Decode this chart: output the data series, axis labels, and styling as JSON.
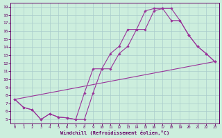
{
  "background_color": "#cceedd",
  "grid_color": "#aacccc",
  "line_color": "#993399",
  "marker_color": "#993399",
  "xlabel": "Windchill (Refroidissement éolien,°C)",
  "xlabel_color": "#660066",
  "tick_color": "#660066",
  "spine_color": "#660066",
  "xlim": [
    -0.5,
    23.5
  ],
  "ylim": [
    4.5,
    19.5
  ],
  "xticks": [
    0,
    1,
    2,
    3,
    4,
    5,
    6,
    7,
    8,
    9,
    10,
    11,
    12,
    13,
    14,
    15,
    16,
    17,
    18,
    19,
    20,
    21,
    22,
    23
  ],
  "yticks": [
    5,
    6,
    7,
    8,
    9,
    10,
    11,
    12,
    13,
    14,
    15,
    16,
    17,
    18,
    19
  ],
  "series1_x": [
    0,
    1,
    2,
    3,
    4,
    5,
    6,
    7,
    8,
    9,
    10,
    11,
    12,
    13,
    14,
    15,
    16,
    17,
    18,
    19,
    20,
    21,
    22,
    23
  ],
  "series1_y": [
    7.5,
    6.5,
    6.2,
    5.0,
    5.7,
    5.3,
    5.2,
    5.0,
    5.0,
    8.3,
    11.3,
    11.3,
    13.2,
    14.1,
    16.2,
    16.2,
    18.5,
    18.8,
    18.8,
    17.3,
    15.5,
    14.1,
    13.2,
    12.2
  ],
  "series2_x": [
    0,
    1,
    2,
    3,
    4,
    5,
    6,
    7,
    8,
    9,
    10,
    11,
    12,
    13,
    14,
    15,
    16,
    17,
    18,
    19,
    20,
    21,
    22,
    23
  ],
  "series2_y": [
    7.5,
    6.5,
    6.2,
    5.0,
    5.7,
    5.3,
    5.2,
    5.0,
    8.3,
    11.3,
    11.3,
    13.2,
    14.1,
    16.2,
    16.2,
    18.5,
    18.8,
    18.8,
    17.3,
    17.3,
    15.5,
    14.1,
    13.2,
    12.2
  ],
  "series3_x": [
    0,
    23
  ],
  "series3_y": [
    7.5,
    12.2
  ],
  "figsize": [
    3.2,
    2.0
  ],
  "dpi": 100
}
